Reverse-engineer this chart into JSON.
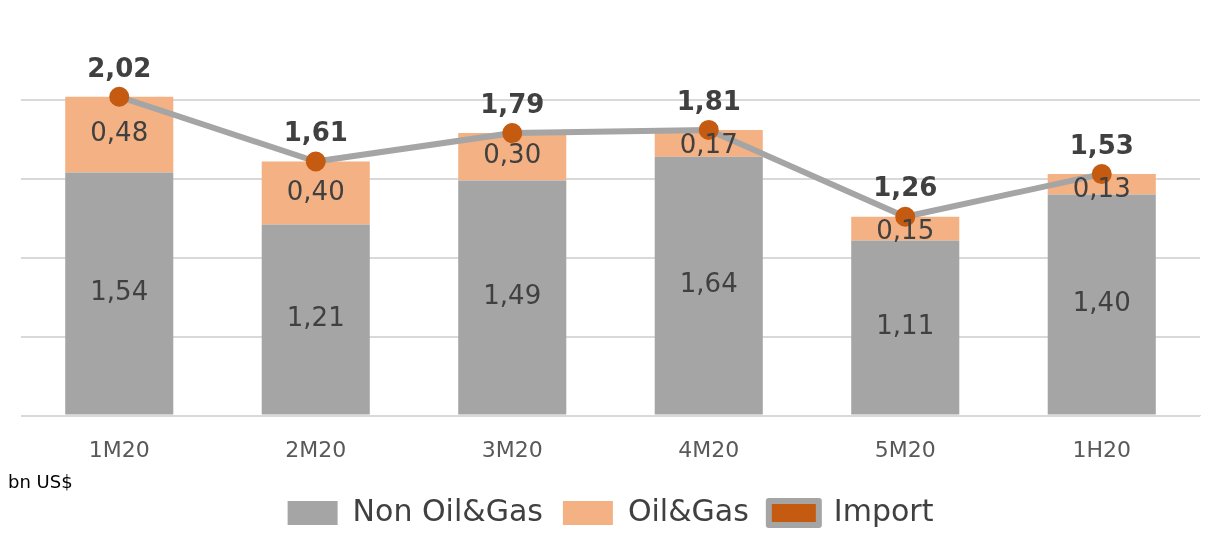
{
  "chart_data": {
    "type": "bar",
    "stacked": true,
    "categories": [
      "1M20",
      "2M20",
      "3M20",
      "4M20",
      "5M20",
      "1H20"
    ],
    "series": [
      {
        "name": "Non Oil&Gas",
        "color": "#a5a5a5",
        "values": [
          1.54,
          1.21,
          1.49,
          1.64,
          1.11,
          1.4
        ],
        "value_labels": [
          "1,54",
          "1,21",
          "1,49",
          "1,64",
          "1,11",
          "1,40"
        ]
      },
      {
        "name": "Oil&Gas",
        "color": "#f4b183",
        "values": [
          0.48,
          0.4,
          0.3,
          0.17,
          0.15,
          0.13
        ],
        "value_labels": [
          "0,48",
          "0,40",
          "0,30",
          "0,17",
          "0,15",
          "0,13"
        ]
      },
      {
        "name": "Import",
        "type": "line",
        "color": "#a5a5a5",
        "colors": [
          "#c55a11",
          "#c55a11",
          "#c55a11",
          "#c55a11",
          "#c55a11",
          "#c55a11"
        ],
        "marker": "circle",
        "values": [
          2.02,
          1.61,
          1.79,
          1.81,
          1.26,
          1.53
        ],
        "value_labels": [
          "2,02",
          "1,61",
          "1,79",
          "1,81",
          "1,26",
          "1,53"
        ]
      }
    ],
    "yticks": [
      {
        "value": 0,
        "label": null
      },
      {
        "value": 0.5,
        "label": null
      },
      {
        "value": 1,
        "label": null
      },
      {
        "value": 1.5,
        "label": null
      },
      {
        "value": 2,
        "label": null
      }
    ],
    "tick_labels": "x",
    "grid": "y",
    "legend": "bottom",
    "annotations": [
      "bn US$"
    ]
  }
}
